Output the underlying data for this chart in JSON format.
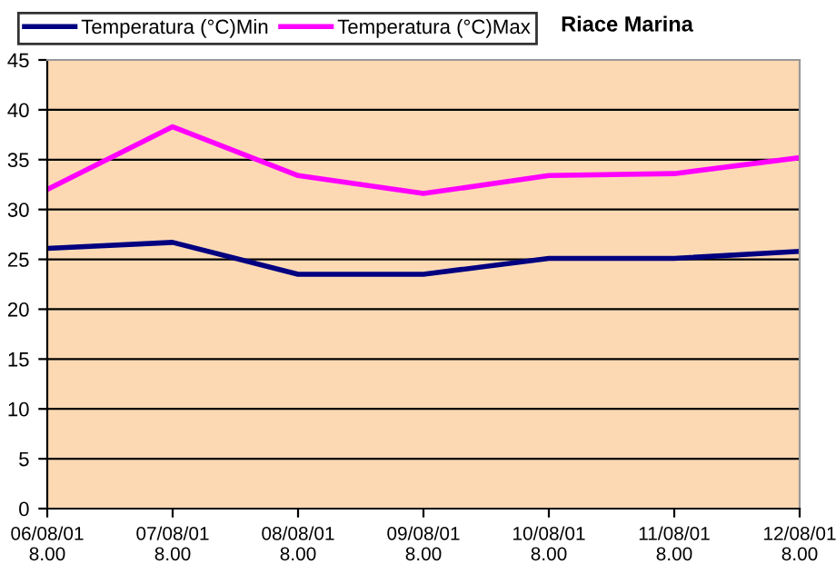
{
  "chart_data": {
    "type": "line",
    "title": "Riace Marina",
    "categories": [
      "06/08/01\n8.00",
      "07/08/01\n8.00",
      "08/08/01\n8.00",
      "09/08/01\n8.00",
      "10/08/01\n8.00",
      "11/08/01\n8.00",
      "12/08/01\n8.00"
    ],
    "series": [
      {
        "name": "Temperatura (°C)Min",
        "color": "#000080",
        "values": [
          26.1,
          26.7,
          23.5,
          23.5,
          25.1,
          25.1,
          25.8
        ]
      },
      {
        "name": "Temperatura (°C)Max",
        "color": "#ff00ff",
        "values": [
          32.0,
          38.3,
          33.4,
          31.6,
          33.4,
          33.6,
          35.2
        ]
      }
    ],
    "ylim": [
      0,
      45
    ],
    "yticks": [
      0,
      5,
      10,
      15,
      20,
      25,
      30,
      35,
      40,
      45
    ],
    "grid": "y",
    "legend": "top left",
    "marker": "none",
    "line_style": "solid"
  }
}
